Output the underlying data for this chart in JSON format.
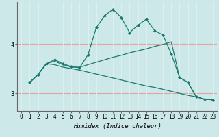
{
  "xlabel": "Humidex (Indice chaleur)",
  "bg_color": "#cce8e8",
  "line_color": "#1a7a6e",
  "grid_h_color": "#e8a0a0",
  "grid_v_color": "#e0f0f0",
  "xlim": [
    -0.5,
    23.5
  ],
  "ylim": [
    2.65,
    4.85
  ],
  "yticks": [
    3,
    4
  ],
  "xticks": [
    0,
    1,
    2,
    3,
    4,
    5,
    6,
    7,
    8,
    9,
    10,
    11,
    12,
    13,
    14,
    15,
    16,
    17,
    18,
    19,
    20,
    21,
    22,
    23
  ],
  "line_marked_x": [
    1,
    2,
    3,
    4,
    5,
    6,
    7,
    8,
    9,
    10,
    11,
    12,
    13,
    14,
    15,
    16,
    17,
    18,
    19,
    20,
    21,
    22,
    23
  ],
  "line_marked_y": [
    3.22,
    3.38,
    3.6,
    3.68,
    3.6,
    3.54,
    3.52,
    3.78,
    4.33,
    4.57,
    4.7,
    4.53,
    4.23,
    4.38,
    4.5,
    4.27,
    4.18,
    3.8,
    3.32,
    3.22,
    2.93,
    2.88,
    2.87
  ],
  "line_rise_x": [
    1,
    2,
    3,
    4,
    5,
    6,
    7,
    8,
    9,
    10,
    11,
    12,
    13,
    14,
    15,
    16,
    17,
    18,
    19,
    20,
    21,
    22,
    23
  ],
  "line_rise_y": [
    3.22,
    3.38,
    3.6,
    3.65,
    3.58,
    3.53,
    3.53,
    3.58,
    3.63,
    3.68,
    3.73,
    3.77,
    3.82,
    3.86,
    3.9,
    3.95,
    3.99,
    4.04,
    3.32,
    3.22,
    2.93,
    2.88,
    2.87
  ],
  "line_fall_x": [
    1,
    2,
    3,
    4,
    5,
    6,
    7,
    8,
    9,
    10,
    11,
    12,
    13,
    14,
    15,
    16,
    17,
    18,
    19,
    20,
    21,
    22,
    23
  ],
  "line_fall_y": [
    3.22,
    3.38,
    3.6,
    3.58,
    3.53,
    3.5,
    3.47,
    3.43,
    3.39,
    3.35,
    3.31,
    3.27,
    3.23,
    3.19,
    3.15,
    3.12,
    3.08,
    3.04,
    3.0,
    2.96,
    2.93,
    2.88,
    2.87
  ],
  "marker_size": 2.5,
  "line_width": 0.9,
  "tick_fontsize": 5.5,
  "xlabel_fontsize": 6.5
}
